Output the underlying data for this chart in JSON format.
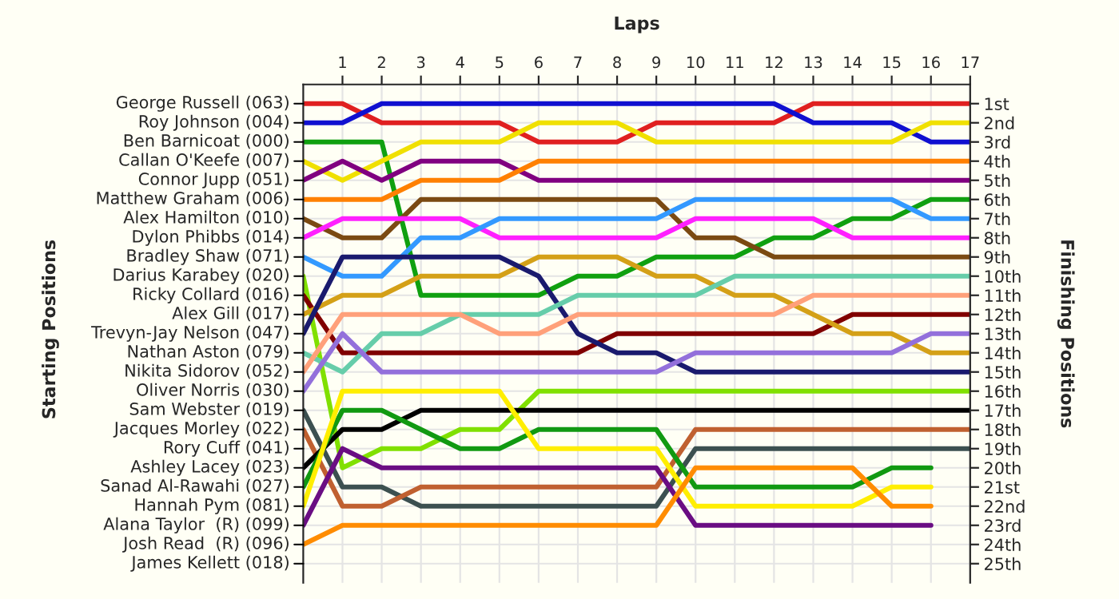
{
  "chart_data": {
    "type": "line",
    "xlabel": "Laps",
    "ylabel": "Finishing Positions",
    "x": [
      0,
      1,
      2,
      3,
      4,
      5,
      6,
      7,
      8,
      9,
      10,
      11,
      12,
      13,
      14,
      15,
      16,
      17
    ],
    "xlim": [
      0,
      17
    ],
    "xticks": [
      1,
      2,
      3,
      4,
      5,
      6,
      7,
      8,
      9,
      10,
      11,
      12,
      13,
      14,
      15,
      16,
      17
    ],
    "ylim": [
      26,
      0
    ],
    "yticks": [
      {
        "value": 1,
        "label": "1st"
      },
      {
        "value": 2,
        "label": "2nd"
      },
      {
        "value": 3,
        "label": "3rd"
      },
      {
        "value": 4,
        "label": "4th"
      },
      {
        "value": 5,
        "label": "5th"
      },
      {
        "value": 6,
        "label": "6th"
      },
      {
        "value": 7,
        "label": "7th"
      },
      {
        "value": 8,
        "label": "8th"
      },
      {
        "value": 9,
        "label": "9th"
      },
      {
        "value": 10,
        "label": "10th"
      },
      {
        "value": 11,
        "label": "11th"
      },
      {
        "value": 12,
        "label": "12th"
      },
      {
        "value": 13,
        "label": "13th"
      },
      {
        "value": 14,
        "label": "14th"
      },
      {
        "value": 15,
        "label": "15th"
      },
      {
        "value": 16,
        "label": "16th"
      },
      {
        "value": 17,
        "label": "17th"
      },
      {
        "value": 18,
        "label": "18th"
      },
      {
        "value": 19,
        "label": "19th"
      },
      {
        "value": 20,
        "label": "20th"
      },
      {
        "value": 21,
        "label": "21st"
      },
      {
        "value": 22,
        "label": "22nd"
      },
      {
        "value": 23,
        "label": "23rd"
      },
      {
        "value": 24,
        "label": "24th"
      },
      {
        "value": 25,
        "label": "25th"
      }
    ],
    "annotations": [
      "Starting Positions",
      "George Russell (063)",
      "Roy Johnson (004)",
      "Ben Barnicoat (000)",
      "Callan O'Keefe (007)",
      "Connor Jupp (051)",
      "Matthew Graham (006)",
      "Alex Hamilton (010)",
      "Dylon Phibbs (014)",
      "Bradley Shaw (071)",
      "Darius Karabey (020)",
      "Ricky Collard (016)",
      "Alex Gill (017)",
      "Trevyn-Jay Nelson (047)",
      "Nathan Aston (079)",
      "Nikita Sidorov (052)",
      "Oliver Norris (030)",
      "Sam Webster (019)",
      "Jacques Morley (022)",
      "Rory Cuff (041)",
      "Ashley Lacey (023)",
      "Sanad Al-Rawahi (027)",
      "Hannah Pym (081)",
      "Alana Taylor  (R) (099)",
      "Josh Read  (R) (096)",
      "James Kellett (018)"
    ],
    "grid": true,
    "legend": false,
    "marker": "none",
    "line_style": "solid",
    "series": [
      {
        "color": "#e02020",
        "values": [
          1,
          1,
          2,
          2,
          2,
          2,
          3,
          3,
          3,
          2,
          2,
          2,
          2,
          1,
          1,
          1,
          1,
          1
        ]
      },
      {
        "color": "#1010d0",
        "values": [
          2,
          2,
          1,
          1,
          1,
          1,
          1,
          1,
          1,
          1,
          1,
          1,
          1,
          2,
          2,
          2,
          3,
          3
        ]
      },
      {
        "color": "#10a010",
        "values": [
          3,
          3,
          3,
          11,
          11,
          11,
          11,
          10,
          10,
          9,
          9,
          9,
          8,
          8,
          7,
          7,
          6,
          6
        ]
      },
      {
        "color": "#f0e000",
        "values": [
          4,
          5,
          4,
          3,
          3,
          3,
          2,
          2,
          2,
          3,
          3,
          3,
          3,
          3,
          3,
          3,
          2,
          2
        ]
      },
      {
        "color": "#800080",
        "values": [
          5,
          4,
          5,
          4,
          4,
          4,
          5,
          5,
          5,
          5,
          5,
          5,
          5,
          5,
          5,
          5,
          5,
          5
        ]
      },
      {
        "color": "#ff8000",
        "values": [
          6,
          6,
          6,
          5,
          5,
          5,
          4,
          4,
          4,
          4,
          4,
          4,
          4,
          4,
          4,
          4,
          4,
          4
        ]
      },
      {
        "color": "#7b4a12",
        "values": [
          7,
          8,
          8,
          6,
          6,
          6,
          6,
          6,
          6,
          6,
          8,
          8,
          9,
          9,
          9,
          9,
          9,
          9
        ]
      },
      {
        "color": "#ff20ff",
        "values": [
          8,
          7,
          7,
          7,
          7,
          8,
          8,
          8,
          8,
          8,
          7,
          7,
          7,
          7,
          8,
          8,
          8,
          8
        ]
      },
      {
        "color": "#3399ff",
        "values": [
          9,
          10,
          10,
          8,
          8,
          7,
          7,
          7,
          7,
          7,
          6,
          6,
          6,
          6,
          6,
          6,
          7,
          7
        ]
      },
      {
        "color": "#80e000",
        "values": [
          10,
          20,
          19,
          19,
          18,
          18,
          16,
          16,
          16,
          16,
          16,
          16,
          16,
          16,
          16,
          16,
          16,
          16
        ]
      },
      {
        "color": "#800000",
        "values": [
          11,
          14,
          14,
          14,
          14,
          14,
          14,
          14,
          13,
          13,
          13,
          13,
          13,
          13,
          12,
          12,
          12,
          12
        ]
      },
      {
        "color": "#d4a017",
        "values": [
          12,
          11,
          11,
          10,
          10,
          10,
          9,
          9,
          9,
          10,
          10,
          11,
          11,
          12,
          13,
          13,
          14,
          14
        ]
      },
      {
        "color": "#1a1a6e",
        "values": [
          13,
          9,
          9,
          9,
          9,
          9,
          10,
          13,
          14,
          14,
          15,
          15,
          15,
          15,
          15,
          15,
          15,
          15
        ]
      },
      {
        "color": "#66cdaa",
        "values": [
          14,
          15,
          13,
          13,
          12,
          12,
          12,
          11,
          11,
          11,
          11,
          10,
          10,
          10,
          10,
          10,
          10,
          10
        ]
      },
      {
        "color": "#ffa07a",
        "values": [
          15,
          12,
          12,
          12,
          12,
          13,
          13,
          12,
          12,
          12,
          12,
          12,
          12,
          11,
          11,
          11,
          11,
          11
        ]
      },
      {
        "color": "#9370db",
        "values": [
          16,
          13,
          15,
          15,
          15,
          15,
          15,
          15,
          15,
          15,
          14,
          14,
          14,
          14,
          14,
          14,
          13,
          13
        ]
      },
      {
        "color": "#3c5050",
        "values": [
          17,
          21,
          21,
          22,
          22,
          22,
          22,
          22,
          22,
          22,
          19,
          19,
          19,
          19,
          19,
          19,
          19,
          19
        ]
      },
      {
        "color": "#c06030",
        "values": [
          18,
          22,
          22,
          21,
          21,
          21,
          21,
          21,
          21,
          21,
          18,
          18,
          18,
          18,
          18,
          18,
          18,
          18
        ]
      },
      {
        "color": "#000000",
        "values": [
          20,
          18,
          18,
          17,
          17,
          17,
          17,
          17,
          17,
          17,
          17,
          17,
          17,
          17,
          17,
          17,
          17,
          17
        ]
      },
      {
        "color": "#119911",
        "values": [
          21,
          17,
          17,
          18,
          19,
          19,
          18,
          18,
          18,
          18,
          21,
          21,
          21,
          21,
          21,
          20,
          20,
          null
        ]
      },
      {
        "color": "#ffee00",
        "values": [
          22,
          16,
          16,
          16,
          16,
          16,
          19,
          19,
          19,
          19,
          22,
          22,
          22,
          22,
          22,
          21,
          21,
          null
        ]
      },
      {
        "color": "#6a0d83",
        "values": [
          23,
          19,
          20,
          20,
          20,
          20,
          20,
          20,
          20,
          20,
          23,
          23,
          23,
          23,
          23,
          23,
          23,
          null
        ]
      },
      {
        "color": "#ff8c00",
        "values": [
          24,
          23,
          23,
          23,
          23,
          23,
          23,
          23,
          23,
          23,
          20,
          20,
          20,
          20,
          20,
          22,
          22,
          null
        ]
      }
    ]
  }
}
